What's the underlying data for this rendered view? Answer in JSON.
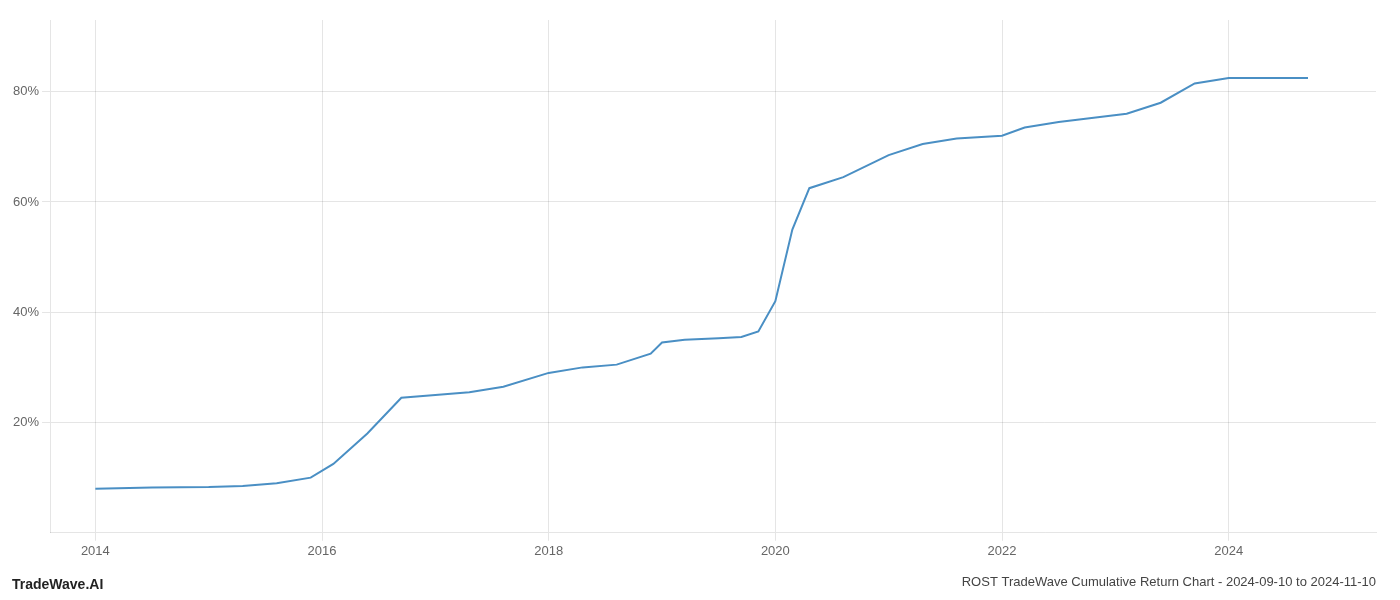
{
  "chart_data": {
    "type": "line",
    "title": "ROST TradeWave Cumulative Return Chart - 2024-09-10 to 2024-11-10",
    "annotations": [
      "TradeWave.AI"
    ],
    "color": "#4a8fc4",
    "x": [
      2014.0,
      2014.5,
      2015.0,
      2015.3,
      2015.6,
      2015.9,
      2016.1,
      2016.4,
      2016.7,
      2017.0,
      2017.3,
      2017.6,
      2018.0,
      2018.3,
      2018.6,
      2018.9,
      2019.0,
      2019.2,
      2019.5,
      2019.7,
      2019.85,
      2020.0,
      2020.15,
      2020.3,
      2020.6,
      2021.0,
      2021.3,
      2021.6,
      2022.0,
      2022.2,
      2022.5,
      2022.7,
      2022.9,
      2023.1,
      2023.4,
      2023.7,
      2024.0,
      2024.7
    ],
    "values": [
      8.0,
      8.2,
      8.3,
      8.5,
      9.0,
      10.0,
      12.5,
      18.0,
      24.5,
      25.0,
      25.5,
      26.5,
      29.0,
      30.0,
      30.5,
      32.5,
      34.5,
      35.0,
      35.3,
      35.5,
      36.5,
      42.0,
      55.0,
      62.5,
      64.5,
      68.5,
      70.5,
      71.5,
      72.0,
      73.5,
      74.5,
      75.0,
      75.5,
      76.0,
      78.0,
      81.5,
      82.5,
      82.5
    ],
    "xlim": [
      2013.6,
      2025.3
    ],
    "xticks": [
      2014,
      2016,
      2018,
      2020,
      2022,
      2024
    ],
    "ylim": [
      0,
      93
    ],
    "yticks": [
      {
        "value": 20,
        "label": "20%"
      },
      {
        "value": 40,
        "label": "40%"
      },
      {
        "value": 60,
        "label": "60%"
      },
      {
        "value": 80,
        "label": "80%"
      }
    ],
    "grid": true
  }
}
